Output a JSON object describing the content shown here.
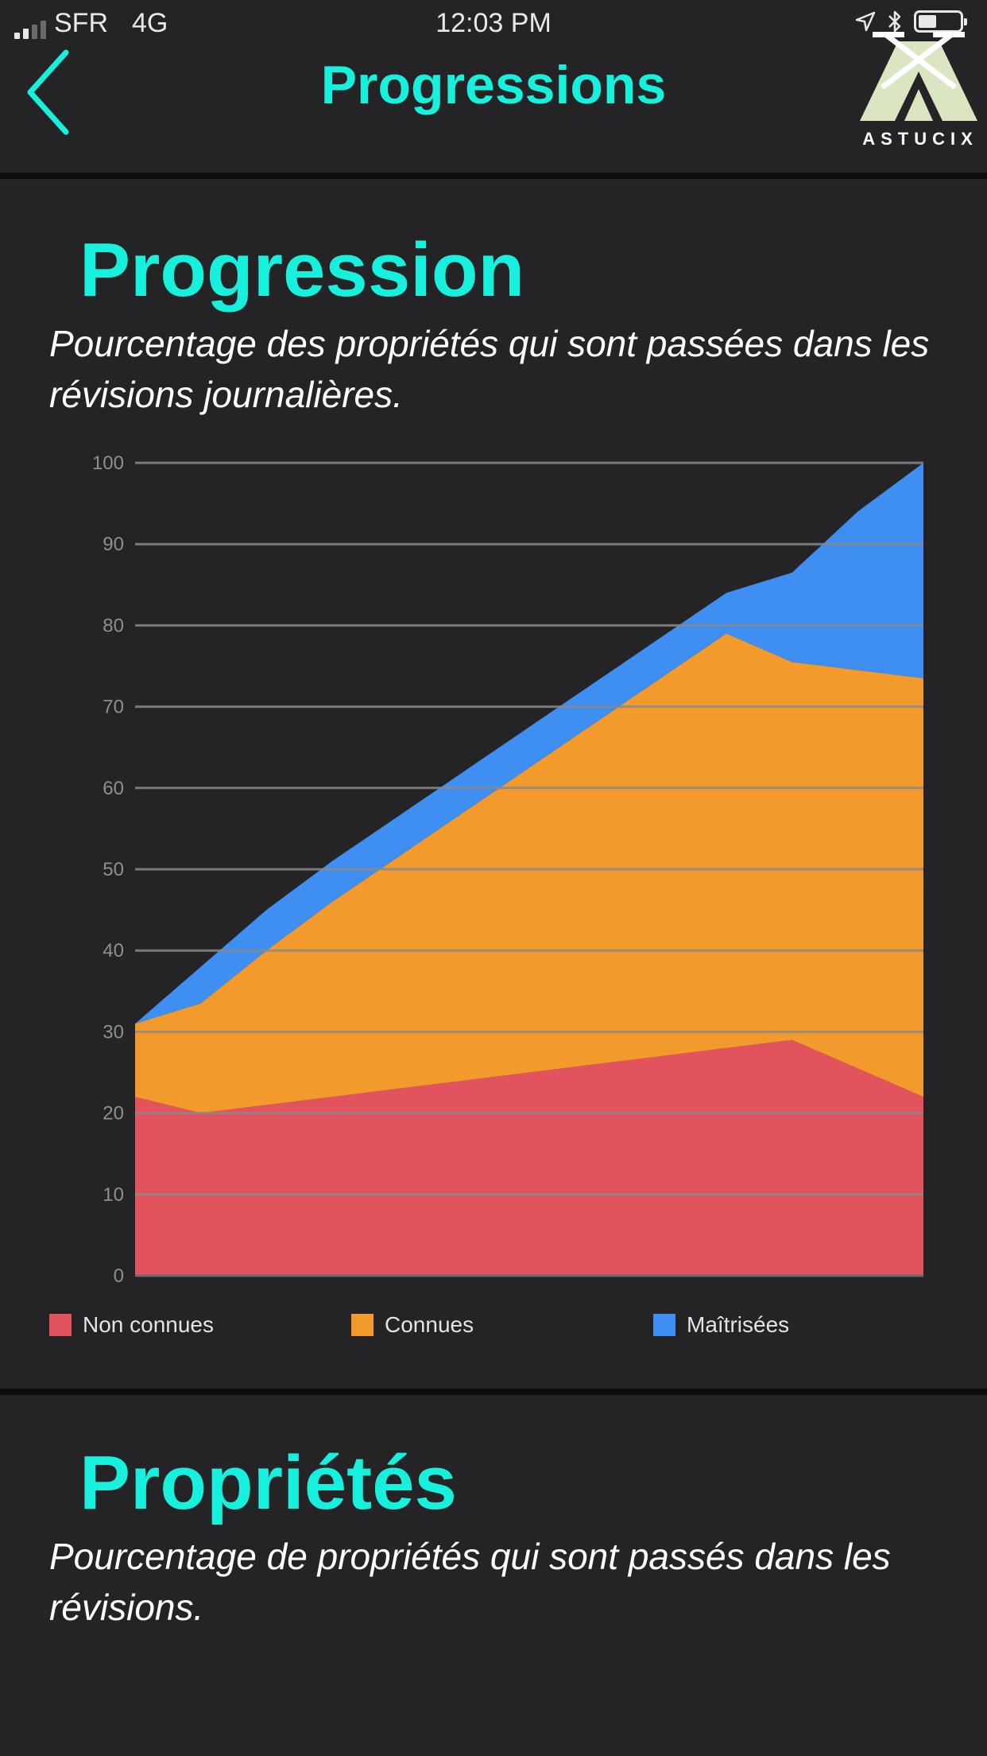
{
  "status_bar": {
    "carrier": "SFR",
    "network": "4G",
    "time": "12:03 PM"
  },
  "header": {
    "title": "Progressions",
    "logo_text": "ASTUCIX"
  },
  "progression": {
    "title": "Progression",
    "description": "Pourcentage des propriétés qui sont passées dans les révisions journalières."
  },
  "proprietes": {
    "title": "Propriétés",
    "description": "Pourcentage de propriétés qui sont passés dans les révisions."
  },
  "colors": {
    "accent": "#17f0dc",
    "background": "#242325",
    "non_connues": "#e2535d",
    "connues": "#f39a2c",
    "maitrisees": "#3f8ef2"
  },
  "chart_data": {
    "type": "area",
    "stacked": true,
    "title": "Progression",
    "xlabel": "",
    "ylabel": "",
    "ylim": [
      0,
      100
    ],
    "yticks": [
      0,
      10,
      20,
      30,
      40,
      50,
      60,
      70,
      80,
      90,
      100
    ],
    "x": [
      0,
      1,
      2,
      3,
      4,
      5,
      6,
      7,
      8,
      9,
      10,
      11,
      12
    ],
    "series": [
      {
        "name": "Non connues",
        "color": "#e2535d",
        "values": [
          22,
          20,
          21,
          22,
          23,
          24,
          25,
          26,
          27,
          28,
          29,
          25.5,
          22
        ]
      },
      {
        "name": "Connues",
        "color": "#f39a2c",
        "values": [
          9,
          13.5,
          19,
          24,
          28.5,
          33,
          37.5,
          42,
          46.5,
          51,
          46.5,
          49,
          51.5
        ]
      },
      {
        "name": "Maîtrisées",
        "color": "#3f8ef2",
        "values": [
          0,
          4.5,
          5,
          5,
          5,
          5,
          5,
          5,
          5,
          5,
          11,
          19.5,
          26.5
        ]
      }
    ],
    "legend": {
      "position": "bottom",
      "labels": [
        "Non connues",
        "Connues",
        "Maîtrisées"
      ]
    },
    "grid": true
  }
}
